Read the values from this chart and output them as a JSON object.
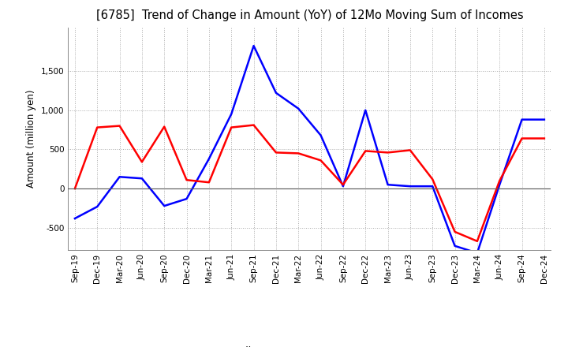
{
  "title": "[6785]  Trend of Change in Amount (YoY) of 12Mo Moving Sum of Incomes",
  "ylabel": "Amount (million yen)",
  "x_labels": [
    "Sep-19",
    "Dec-19",
    "Mar-20",
    "Jun-20",
    "Sep-20",
    "Dec-20",
    "Mar-21",
    "Jun-21",
    "Sep-21",
    "Dec-21",
    "Mar-22",
    "Jun-22",
    "Sep-22",
    "Dec-22",
    "Mar-23",
    "Jun-23",
    "Sep-23",
    "Dec-23",
    "Mar-24",
    "Jun-24",
    "Sep-24",
    "Dec-24"
  ],
  "ordinary_income": [
    -380,
    -230,
    150,
    130,
    -220,
    -130,
    380,
    950,
    1820,
    1220,
    1020,
    680,
    30,
    1000,
    50,
    30,
    30,
    -730,
    -820,
    50,
    880,
    880
  ],
  "net_income": [
    0,
    780,
    800,
    340,
    790,
    110,
    80,
    780,
    810,
    460,
    450,
    360,
    50,
    480,
    460,
    490,
    120,
    -550,
    -670,
    100,
    640,
    640
  ],
  "ylim": [
    -780,
    2050
  ],
  "yticks": [
    -500,
    0,
    500,
    1000,
    1500
  ],
  "ordinary_color": "#0000FF",
  "net_color": "#FF0000",
  "grid_color": "#AAAAAA",
  "zero_line_color": "#555555",
  "background_color": "#FFFFFF"
}
